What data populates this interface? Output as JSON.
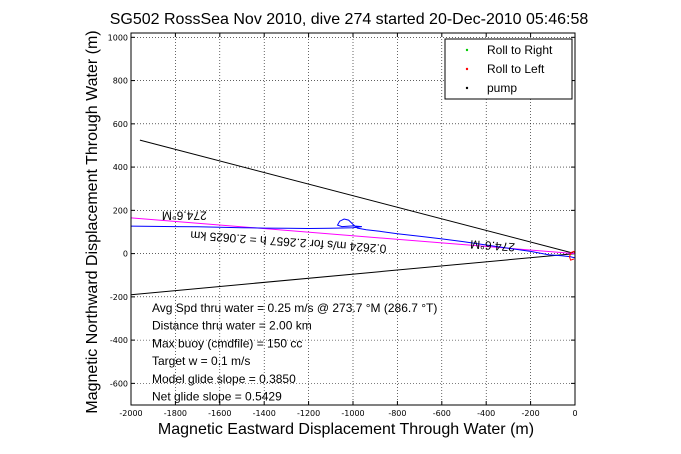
{
  "chart_data": {
    "type": "line",
    "title": "SG502 RossSea Nov 2010, dive 274 started 20-Dec-2010 05:46:58",
    "xlabel": "Magnetic Eastward Displacement Through Water (m)",
    "ylabel": "Magnetic Northward Displacement Through Water (m)",
    "xlim": [
      -2000,
      0
    ],
    "ylim": [
      -700,
      1020
    ],
    "x_ticks": [
      "-2000",
      "-1800",
      "-1600",
      "-1400",
      "-1200",
      "-1000",
      "-800",
      "-600",
      "-400",
      "-200",
      "0"
    ],
    "y_ticks": [
      "1000",
      "800",
      "600",
      "400",
      "200",
      "0",
      "-200",
      "-400",
      "-600"
    ],
    "grid": true,
    "legend_position": "top-right",
    "legend": [
      {
        "label": "Roll to Right",
        "color": "#00cc00"
      },
      {
        "label": "Roll to Left",
        "color": "#ff0000"
      },
      {
        "label": "pump",
        "color": "#000000"
      }
    ],
    "series": [
      {
        "color": "#000000",
        "role": "upper-bound line",
        "x": [
          0,
          -1960
        ],
        "y": [
          0,
          525
        ]
      },
      {
        "color": "#000000",
        "role": "lower-bound line",
        "x": [
          0,
          -2000
        ],
        "y": [
          0,
          -190
        ]
      },
      {
        "color": "#ff00ff",
        "role": "heading line",
        "x": [
          0,
          -2000
        ],
        "y": [
          0,
          165
        ]
      },
      {
        "color": "#0000ff",
        "role": "track",
        "x": [
          0,
          -20,
          -60,
          -120,
          -200,
          -300,
          -400,
          -500,
          -600,
          -700,
          -800,
          -880,
          -940,
          -980,
          -1000,
          -1020,
          -1040,
          -1060,
          -1070,
          -1050,
          -1000,
          -960,
          -1000,
          -1100,
          -1200,
          -1300,
          -1400,
          -1500,
          -1600,
          -1700,
          -1800,
          -1900,
          -2000
        ],
        "y": [
          -20,
          -15,
          -10,
          -5,
          10,
          25,
          40,
          55,
          68,
          80,
          92,
          103,
          110,
          118,
          135,
          155,
          160,
          150,
          132,
          125,
          128,
          125,
          120,
          117,
          116,
          117,
          118,
          120,
          122,
          124,
          125,
          126,
          127
        ]
      },
      {
        "color": "#ff0000",
        "role": "start loop",
        "x": [
          -5,
          -20,
          -25,
          -18,
          -5,
          0
        ],
        "y": [
          -25,
          -30,
          -15,
          5,
          10,
          0
        ]
      }
    ],
    "annotations": [
      {
        "text": "274.6°M",
        "x": -1760,
        "y": 195,
        "rotation": 180
      },
      {
        "text": "0.2624 m/s for 2.2657 h = 2.0625 km",
        "x": -1290,
        "y": 72,
        "rotation": 184
      },
      {
        "text": "274.6°M",
        "x": -370,
        "y": 55,
        "rotation": 184
      }
    ],
    "stats": [
      "Avg Spd thru water =  0.25 m/s @ 273.7   °M (286.7 °T)",
      "Distance thru water =  2.00 km",
      "Max buoy (cmdfile) = 150 cc",
      "Target w = 0.1 m/s",
      "Model glide slope = 0.3850",
      "Net glide slope = 0.5429"
    ]
  }
}
